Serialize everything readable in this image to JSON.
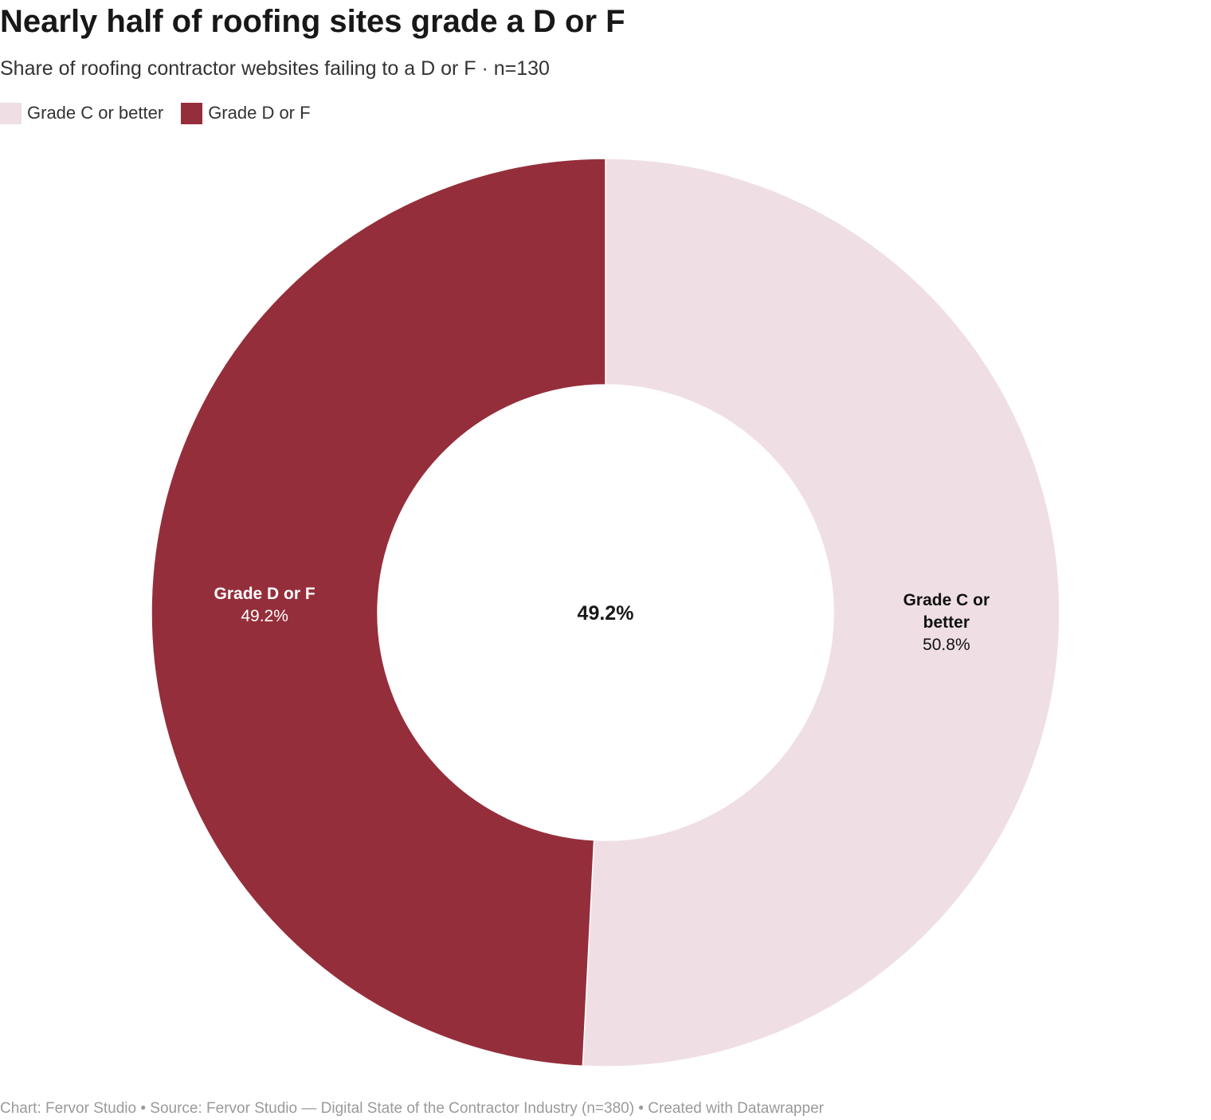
{
  "title": "Nearly half of roofing sites grade a D or F",
  "subtitle": "Share of roofing contractor websites failing to a D or F · n=130",
  "footer": "Chart: Fervor Studio • Source: Fervor Studio — Digital State of the Contractor Industry (n=380) • Created with Datawrapper",
  "colors": {
    "grade_c_or_better": "#efdfe4",
    "grade_d_or_f": "#952e3b",
    "label_dark": "#111111",
    "label_light": "#ffffff"
  },
  "chart_data": {
    "type": "pie",
    "variant": "donut",
    "title": "Nearly half of roofing sites grade a D or F",
    "subtitle": "Share of roofing contractor websites failing to a D or F · n=130",
    "center_label": "49.2%",
    "legend_position": "top-left",
    "start_angle_deg": 0,
    "direction": "clockwise",
    "slices": [
      {
        "name": "Grade C or better",
        "value": 50.8,
        "label_lines": [
          "Grade C or",
          "better"
        ],
        "value_label": "50.8%"
      },
      {
        "name": "Grade D or F",
        "value": 49.2,
        "label_lines": [
          "Grade D or F"
        ],
        "value_label": "49.2%"
      }
    ]
  },
  "legend": {
    "items": [
      {
        "label": "Grade C or better",
        "color": "#efdfe4"
      },
      {
        "label": "Grade D or F",
        "color": "#952e3b"
      }
    ]
  }
}
